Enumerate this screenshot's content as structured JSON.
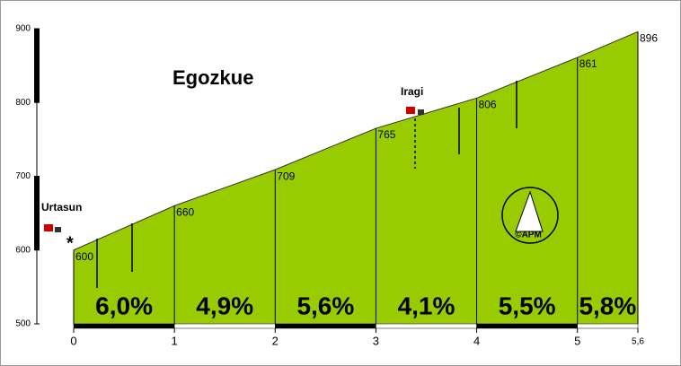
{
  "chart_data": {
    "type": "profile",
    "title": "Egozkue",
    "x": [
      0,
      1,
      2,
      3,
      4,
      5,
      5.6
    ],
    "values": [
      600,
      660,
      709,
      765,
      806,
      861,
      896
    ],
    "color": "#99cc00",
    "xlim": [
      0,
      5.6
    ],
    "xticks": [
      0,
      1,
      2,
      3,
      4,
      5,
      {
        "value": 5.6,
        "label": "5,6"
      }
    ],
    "ylim": [
      500,
      900
    ],
    "yticks": [
      500,
      600,
      700,
      800,
      900
    ],
    "gradients": [
      "6,0%",
      "4,9%",
      "5,6%",
      "4,1%",
      "5,5%",
      "5,8%"
    ],
    "places": [
      "Urtasun",
      "Iragi"
    ],
    "start_marker": "*",
    "logo": "©APM"
  }
}
